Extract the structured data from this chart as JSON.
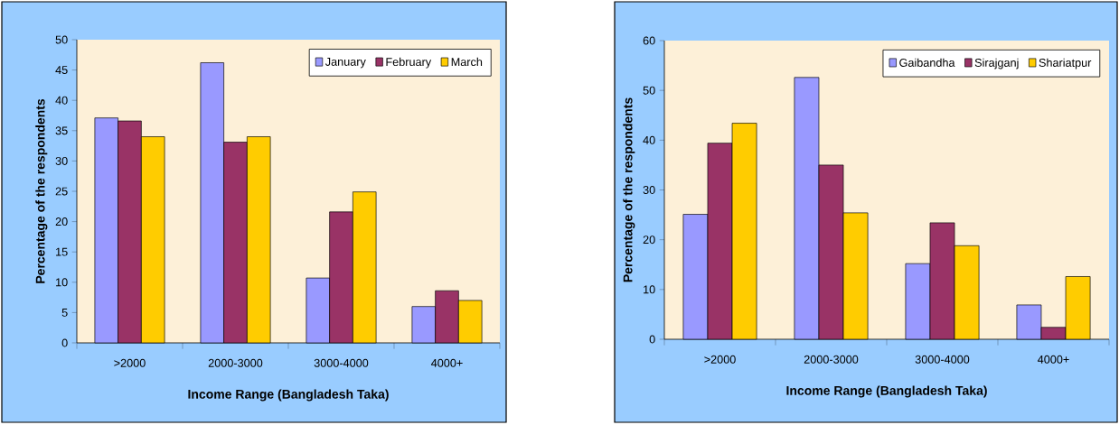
{
  "chart_data": [
    {
      "type": "bar",
      "xlabel": "Income Range (Bangladesh Taka)",
      "ylabel": "Percentage of the respondents",
      "categories": [
        ">2000",
        "2000-3000",
        "3000-4000",
        "4000+"
      ],
      "series": [
        {
          "name": "January",
          "color": "#9999ff",
          "values": [
            37.1,
            46.2,
            10.7,
            6.0
          ]
        },
        {
          "name": "February",
          "color": "#993366",
          "values": [
            36.6,
            33.1,
            21.6,
            8.6
          ]
        },
        {
          "name": "March",
          "color": "#ffcc00",
          "values": [
            34.0,
            34.0,
            24.9,
            7.0
          ]
        }
      ],
      "ylim": [
        0,
        50
      ],
      "yticks": [
        0,
        5,
        10,
        15,
        20,
        25,
        30,
        35,
        40,
        45,
        50
      ],
      "legend": "top right"
    },
    {
      "type": "bar",
      "xlabel": "Income Range (Bangladesh Taka)",
      "ylabel": "Percentage of the respondents",
      "categories": [
        ">2000",
        "2000-3000",
        "3000-4000",
        "4000+"
      ],
      "series": [
        {
          "name": "Gaibandha",
          "color": "#9999ff",
          "values": [
            25.1,
            52.6,
            15.2,
            6.9
          ]
        },
        {
          "name": "Sirajganj",
          "color": "#993366",
          "values": [
            39.4,
            35.0,
            23.4,
            2.4
          ]
        },
        {
          "name": "Shariatpur",
          "color": "#ffcc00",
          "values": [
            43.4,
            25.4,
            18.8,
            12.6
          ]
        }
      ],
      "ylim": [
        0,
        60
      ],
      "yticks": [
        0,
        10,
        20,
        30,
        40,
        50,
        60
      ],
      "legend": "top right"
    }
  ]
}
